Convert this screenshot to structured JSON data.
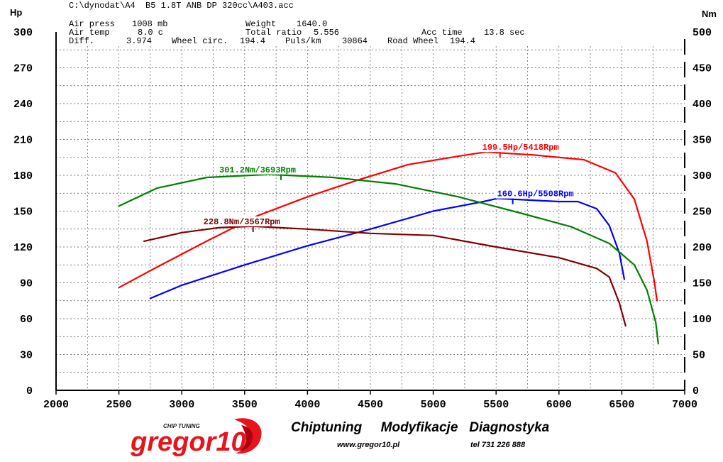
{
  "header": {
    "file": "C:\\dynodat\\A4  B5 1.8T ANB DP 320cc\\A403.acc",
    "air_press_label": "Air press",
    "air_press_value": "1008 mb",
    "weight_label": "Weight",
    "weight_value": "1640.0",
    "air_temp_label": "Air temp",
    "air_temp_value": "8.0 c",
    "total_ratio_label": "Total ratio",
    "total_ratio_value": "5.556",
    "acc_time_label": "Acc time",
    "acc_time_value": "13.8 sec",
    "diff_label": "Diff.",
    "diff_value": "3.974",
    "wheel_circ_label": "Wheel circ.",
    "wheel_circ_value": "194.4",
    "puls_label": "Puls/km",
    "puls_value": "30864",
    "road_wheel_label": "Road Wheel",
    "road_wheel_value": "194.4"
  },
  "footer": {
    "services": "Chiptuning     Modyfikacje   Diagnostyka",
    "website": "www.gregor10.pl",
    "phone": "tel 731 226 888",
    "logo_text": "gregor10",
    "logo_tagline": "CHIP TUNING"
  },
  "chart_data": {
    "type": "line",
    "xlim": [
      2000,
      7000
    ],
    "x_ticks": [
      2000,
      2500,
      3000,
      3500,
      4000,
      4500,
      5000,
      5500,
      6000,
      6500,
      7000
    ],
    "y_left_unit": "Hp",
    "y_left_lim": [
      0,
      300
    ],
    "y_left_ticks": [
      0,
      30,
      60,
      90,
      120,
      150,
      180,
      210,
      240,
      270,
      300
    ],
    "y_right_unit": "Nm",
    "y_right_lim": [
      0,
      500
    ],
    "y_right_ticks": [
      0,
      50,
      100,
      150,
      200,
      250,
      300,
      350,
      400,
      450,
      500
    ],
    "grid": true,
    "series": [
      {
        "axis": "left",
        "color": "#ff0000",
        "peak_label": "199.5Hp/5418Rpm",
        "peak_x": 5418,
        "peak_y": 199.5,
        "x": [
          2500,
          2800,
          3200,
          3600,
          4000,
          4400,
          4800,
          5200,
          5418,
          5800,
          6200,
          6450,
          6600,
          6700,
          6760,
          6780
        ],
        "y": [
          86,
          103,
          125,
          146,
          162,
          176,
          189,
          196,
          199.5,
          197,
          193,
          182,
          160,
          125,
          90,
          75
        ]
      },
      {
        "axis": "left",
        "color": "#0000ff",
        "peak_label": "160.6Hp/5508Rpm",
        "peak_x": 5508,
        "peak_y": 160.6,
        "x": [
          2750,
          3000,
          3500,
          4000,
          4500,
          5000,
          5400,
          5508,
          6000,
          6150,
          6300,
          6400,
          6480,
          6520
        ],
        "y": [
          77,
          88,
          105,
          121,
          135,
          150,
          158,
          160.6,
          158,
          158,
          152,
          138,
          115,
          93
        ]
      },
      {
        "axis": "right",
        "color": "#008000",
        "peak_label": "301.2Nm/3693Rpm",
        "peak_x": 3693,
        "peak_y": 301.2,
        "x": [
          2500,
          2800,
          3200,
          3693,
          4200,
          4700,
          5200,
          5700,
          6100,
          6400,
          6600,
          6700,
          6770,
          6790
        ],
        "y": [
          257,
          282,
          297,
          301.2,
          297,
          288,
          270,
          247,
          228,
          205,
          175,
          140,
          95,
          65
        ]
      },
      {
        "axis": "right",
        "color": "#800000",
        "peak_label": "228.8Nm/3567Rpm",
        "peak_x": 3567,
        "peak_y": 228.8,
        "x": [
          2700,
          3000,
          3300,
          3567,
          4000,
          4500,
          5000,
          5500,
          6000,
          6300,
          6400,
          6480,
          6530
        ],
        "y": [
          208,
          220,
          227,
          228.8,
          225,
          219,
          216,
          200,
          185,
          170,
          158,
          122,
          90
        ]
      }
    ]
  }
}
